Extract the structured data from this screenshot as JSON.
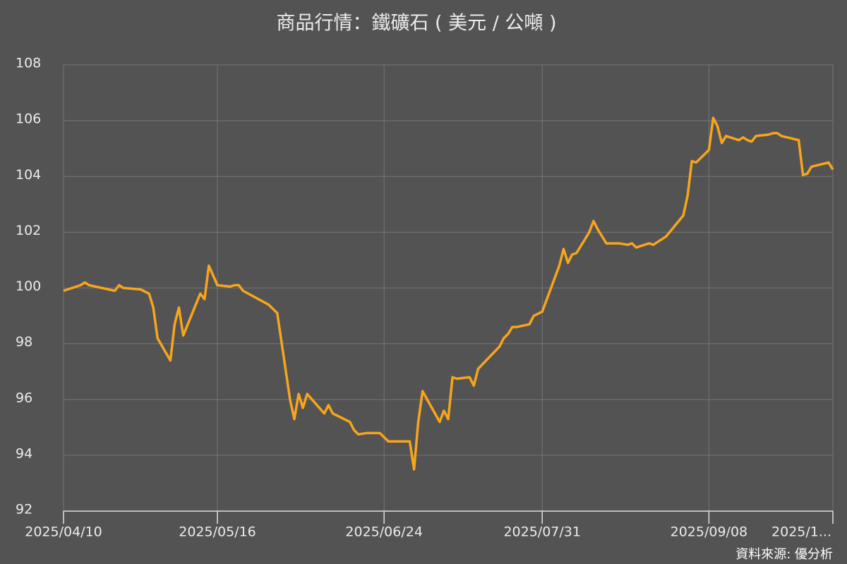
{
  "chart_data": {
    "type": "line",
    "title": "商品行情：鐵礦石 ( 美元 / 公噸 )",
    "source": "資料來源: 優分析",
    "x": [
      "2025/04/10",
      "2025/04/14",
      "2025/04/15",
      "2025/04/16",
      "2025/04/22",
      "2025/04/23",
      "2025/04/24",
      "2025/04/28",
      "2025/04/30",
      "2025/05/01",
      "2025/05/02",
      "2025/05/05",
      "2025/05/06",
      "2025/05/07",
      "2025/05/08",
      "2025/05/12",
      "2025/05/13",
      "2025/05/14",
      "2025/05/16",
      "2025/05/19",
      "2025/05/20",
      "2025/05/21",
      "2025/05/22",
      "2025/05/28",
      "2025/05/30",
      "2025/06/02",
      "2025/06/03",
      "2025/06/04",
      "2025/06/05",
      "2025/06/06",
      "2025/06/10",
      "2025/06/11",
      "2025/06/12",
      "2025/06/16",
      "2025/06/17",
      "2025/06/18",
      "2025/06/20",
      "2025/06/23",
      "2025/06/25",
      "2025/06/26",
      "2025/06/30",
      "2025/07/01",
      "2025/07/02",
      "2025/07/03",
      "2025/07/07",
      "2025/07/08",
      "2025/07/09",
      "2025/07/10",
      "2025/07/11",
      "2025/07/14",
      "2025/07/15",
      "2025/07/16",
      "2025/07/21",
      "2025/07/22",
      "2025/07/23",
      "2025/07/24",
      "2025/07/25",
      "2025/07/28",
      "2025/07/29",
      "2025/07/31",
      "2025/08/04",
      "2025/08/05",
      "2025/08/06",
      "2025/08/07",
      "2025/08/08",
      "2025/08/11",
      "2025/08/12",
      "2025/08/13",
      "2025/08/15",
      "2025/08/18",
      "2025/08/20",
      "2025/08/21",
      "2025/08/22",
      "2025/08/25",
      "2025/08/26",
      "2025/08/27",
      "2025/08/29",
      "2025/09/02",
      "2025/09/03",
      "2025/09/04",
      "2025/09/05",
      "2025/09/08",
      "2025/09/09",
      "2025/09/10",
      "2025/09/11",
      "2025/09/12",
      "2025/09/15",
      "2025/09/16",
      "2025/09/17",
      "2025/09/18",
      "2025/09/19",
      "2025/09/22",
      "2025/09/23",
      "2025/09/24",
      "2025/09/25",
      "2025/09/29",
      "2025/09/30",
      "2025/10/01",
      "2025/10/02",
      "2025/10/06",
      "2025/10/07"
    ],
    "series": [
      {
        "name": "鐵礦石",
        "color": "#f7a51c",
        "values": [
          99.9,
          100.1,
          100.2,
          100.1,
          99.9,
          100.1,
          100.0,
          99.95,
          99.8,
          99.3,
          98.2,
          97.4,
          98.7,
          99.3,
          98.3,
          99.8,
          99.6,
          100.8,
          100.1,
          100.05,
          100.1,
          100.1,
          99.9,
          99.4,
          99.1,
          96.0,
          95.3,
          96.2,
          95.7,
          96.2,
          95.5,
          95.8,
          95.5,
          95.2,
          94.9,
          94.75,
          94.8,
          94.8,
          94.5,
          94.5,
          94.5,
          93.5,
          95.2,
          96.3,
          95.2,
          95.6,
          95.3,
          96.8,
          96.75,
          96.8,
          96.5,
          97.1,
          97.9,
          98.2,
          98.35,
          98.6,
          98.6,
          98.7,
          99.0,
          99.15,
          100.8,
          101.4,
          100.9,
          101.2,
          101.25,
          102.0,
          102.4,
          102.1,
          101.6,
          101.6,
          101.55,
          101.6,
          101.45,
          101.6,
          101.55,
          101.65,
          101.85,
          102.6,
          103.3,
          104.55,
          104.5,
          104.95,
          106.1,
          105.8,
          105.2,
          105.45,
          105.3,
          105.4,
          105.3,
          105.25,
          105.45,
          105.5,
          105.55,
          105.55,
          105.45,
          105.3,
          104.05,
          104.1,
          104.35,
          104.5,
          104.25
        ]
      }
    ],
    "xlim": [
      "2025/04/10",
      "2025/10/07"
    ],
    "xticks": [
      "2025/04/10",
      "2025/05/16",
      "2025/06/24",
      "2025/07/31",
      "2025/09/08",
      {
        "value": "2025/10/07",
        "label": "2025/1..."
      }
    ],
    "ylim": [
      92,
      108
    ],
    "yticks": [
      92,
      94,
      96,
      98,
      100,
      102,
      104,
      106,
      108
    ],
    "grid": true
  }
}
